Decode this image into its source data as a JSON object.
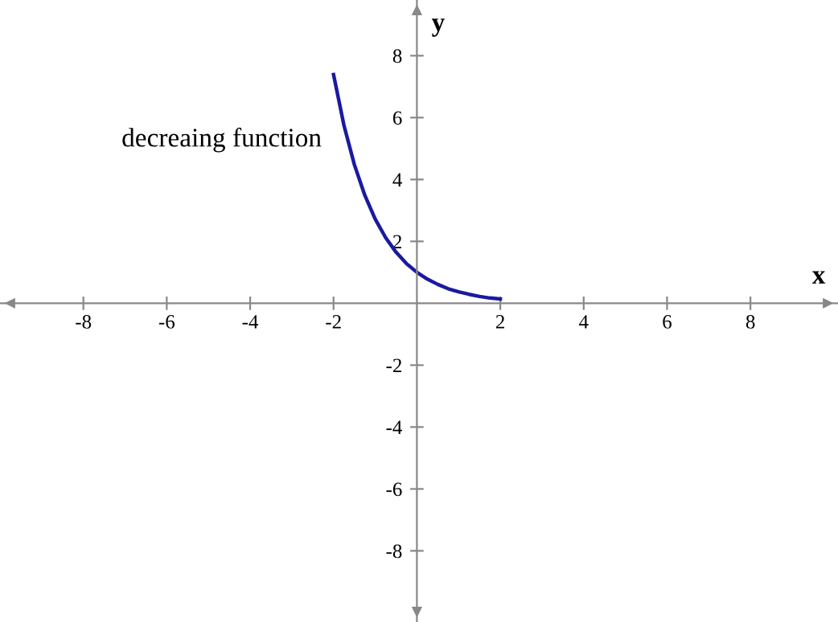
{
  "chart_data": {
    "type": "line",
    "xlabel": "x",
    "ylabel": "y",
    "x": [
      -2,
      -1.75,
      -1.5,
      -1.25,
      -1,
      -0.75,
      -0.5,
      -0.25,
      0,
      0.25,
      0.5,
      0.75,
      1,
      1.25,
      1.5,
      1.75,
      2
    ],
    "series": [
      {
        "color": "#1a1aa0",
        "values": [
          7.39,
          5.75,
          4.48,
          3.49,
          2.72,
          2.12,
          1.65,
          1.28,
          1,
          0.78,
          0.61,
          0.47,
          0.37,
          0.29,
          0.22,
          0.17,
          0.14
        ]
      }
    ],
    "xlim": [
      -10,
      10.1
    ],
    "ylim": [
      -10.3,
      9.8
    ],
    "xticks": [
      -8,
      -6,
      -4,
      -2,
      2,
      4,
      6,
      8
    ],
    "yticks": [
      -8,
      -6,
      -4,
      -2,
      2,
      4,
      6,
      8
    ],
    "annotations": [
      "decreaing function"
    ],
    "grid": false,
    "legend": false,
    "marker": "none",
    "line_style": "solid"
  }
}
